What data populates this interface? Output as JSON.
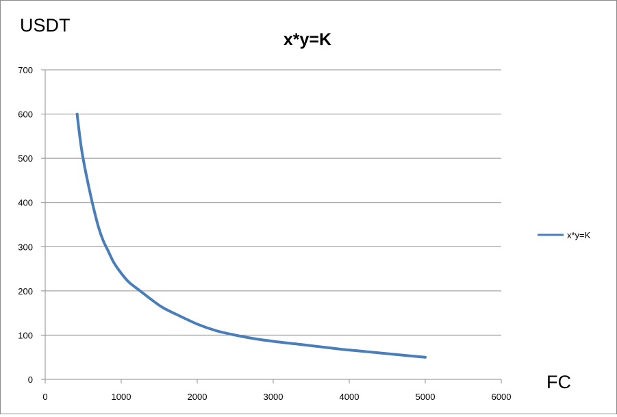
{
  "chart_data": {
    "type": "line",
    "title": "x*y=K",
    "xlabel": "FC",
    "ylabel": "USDT",
    "xlim": [
      0,
      6000
    ],
    "ylim": [
      0,
      700
    ],
    "x_ticks": [
      0,
      1000,
      2000,
      3000,
      4000,
      5000,
      6000
    ],
    "y_ticks": [
      0,
      100,
      200,
      300,
      400,
      500,
      600,
      700
    ],
    "x_tick_labels": [
      "0",
      "1000",
      "2000",
      "3000",
      "4000",
      "5000",
      "6000"
    ],
    "y_tick_labels": [
      "0",
      "100",
      "200",
      "300",
      "400",
      "500",
      "600",
      "700"
    ],
    "grid": "horizontal",
    "legend_position": "right",
    "series": [
      {
        "name": "x*y=K",
        "color": "#4a7ebb",
        "x": [
          420,
          470,
          520,
          580,
          640,
          700,
          760,
          830,
          900,
          1000,
          1100,
          1250,
          1400,
          1550,
          1750,
          2000,
          2250,
          2500,
          2750,
          3000,
          3300,
          3600,
          3900,
          4200,
          4500,
          4800,
          5000
        ],
        "y": [
          600,
          530,
          480,
          430,
          385,
          345,
          315,
          290,
          265,
          240,
          220,
          200,
          180,
          162,
          145,
          125,
          110,
          100,
          92,
          86,
          80,
          74,
          68,
          63,
          58,
          53,
          50
        ]
      }
    ]
  }
}
